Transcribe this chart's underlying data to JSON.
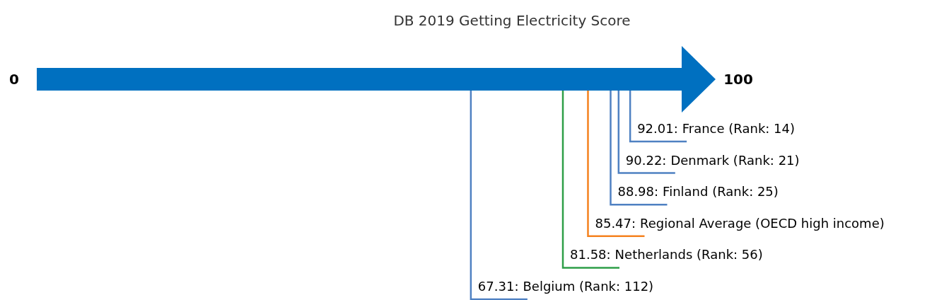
{
  "chart_data": {
    "type": "other",
    "title": "DB 2019 Getting Electricity Score",
    "categories": [
      "France (Rank: 14)",
      "Denmark (Rank: 21)",
      "Finland (Rank: 25)",
      "Regional Average (OECD high income)",
      "Netherlands (Rank: 56)",
      "Belgium (Rank: 112)"
    ],
    "values": [
      92.01,
      90.22,
      88.98,
      85.47,
      81.58,
      67.31
    ],
    "value_labels": [
      "92.01:",
      "90.22:",
      "88.98:",
      "85.47:",
      "81.58:",
      "67.31:"
    ],
    "colors": [
      "#4f81c2",
      "#4f81c2",
      "#4f81c2",
      "#f5821f",
      "#2e9e48",
      "#4f81c2"
    ],
    "data_labels": true,
    "annotations": [
      "0",
      "100"
    ]
  }
}
